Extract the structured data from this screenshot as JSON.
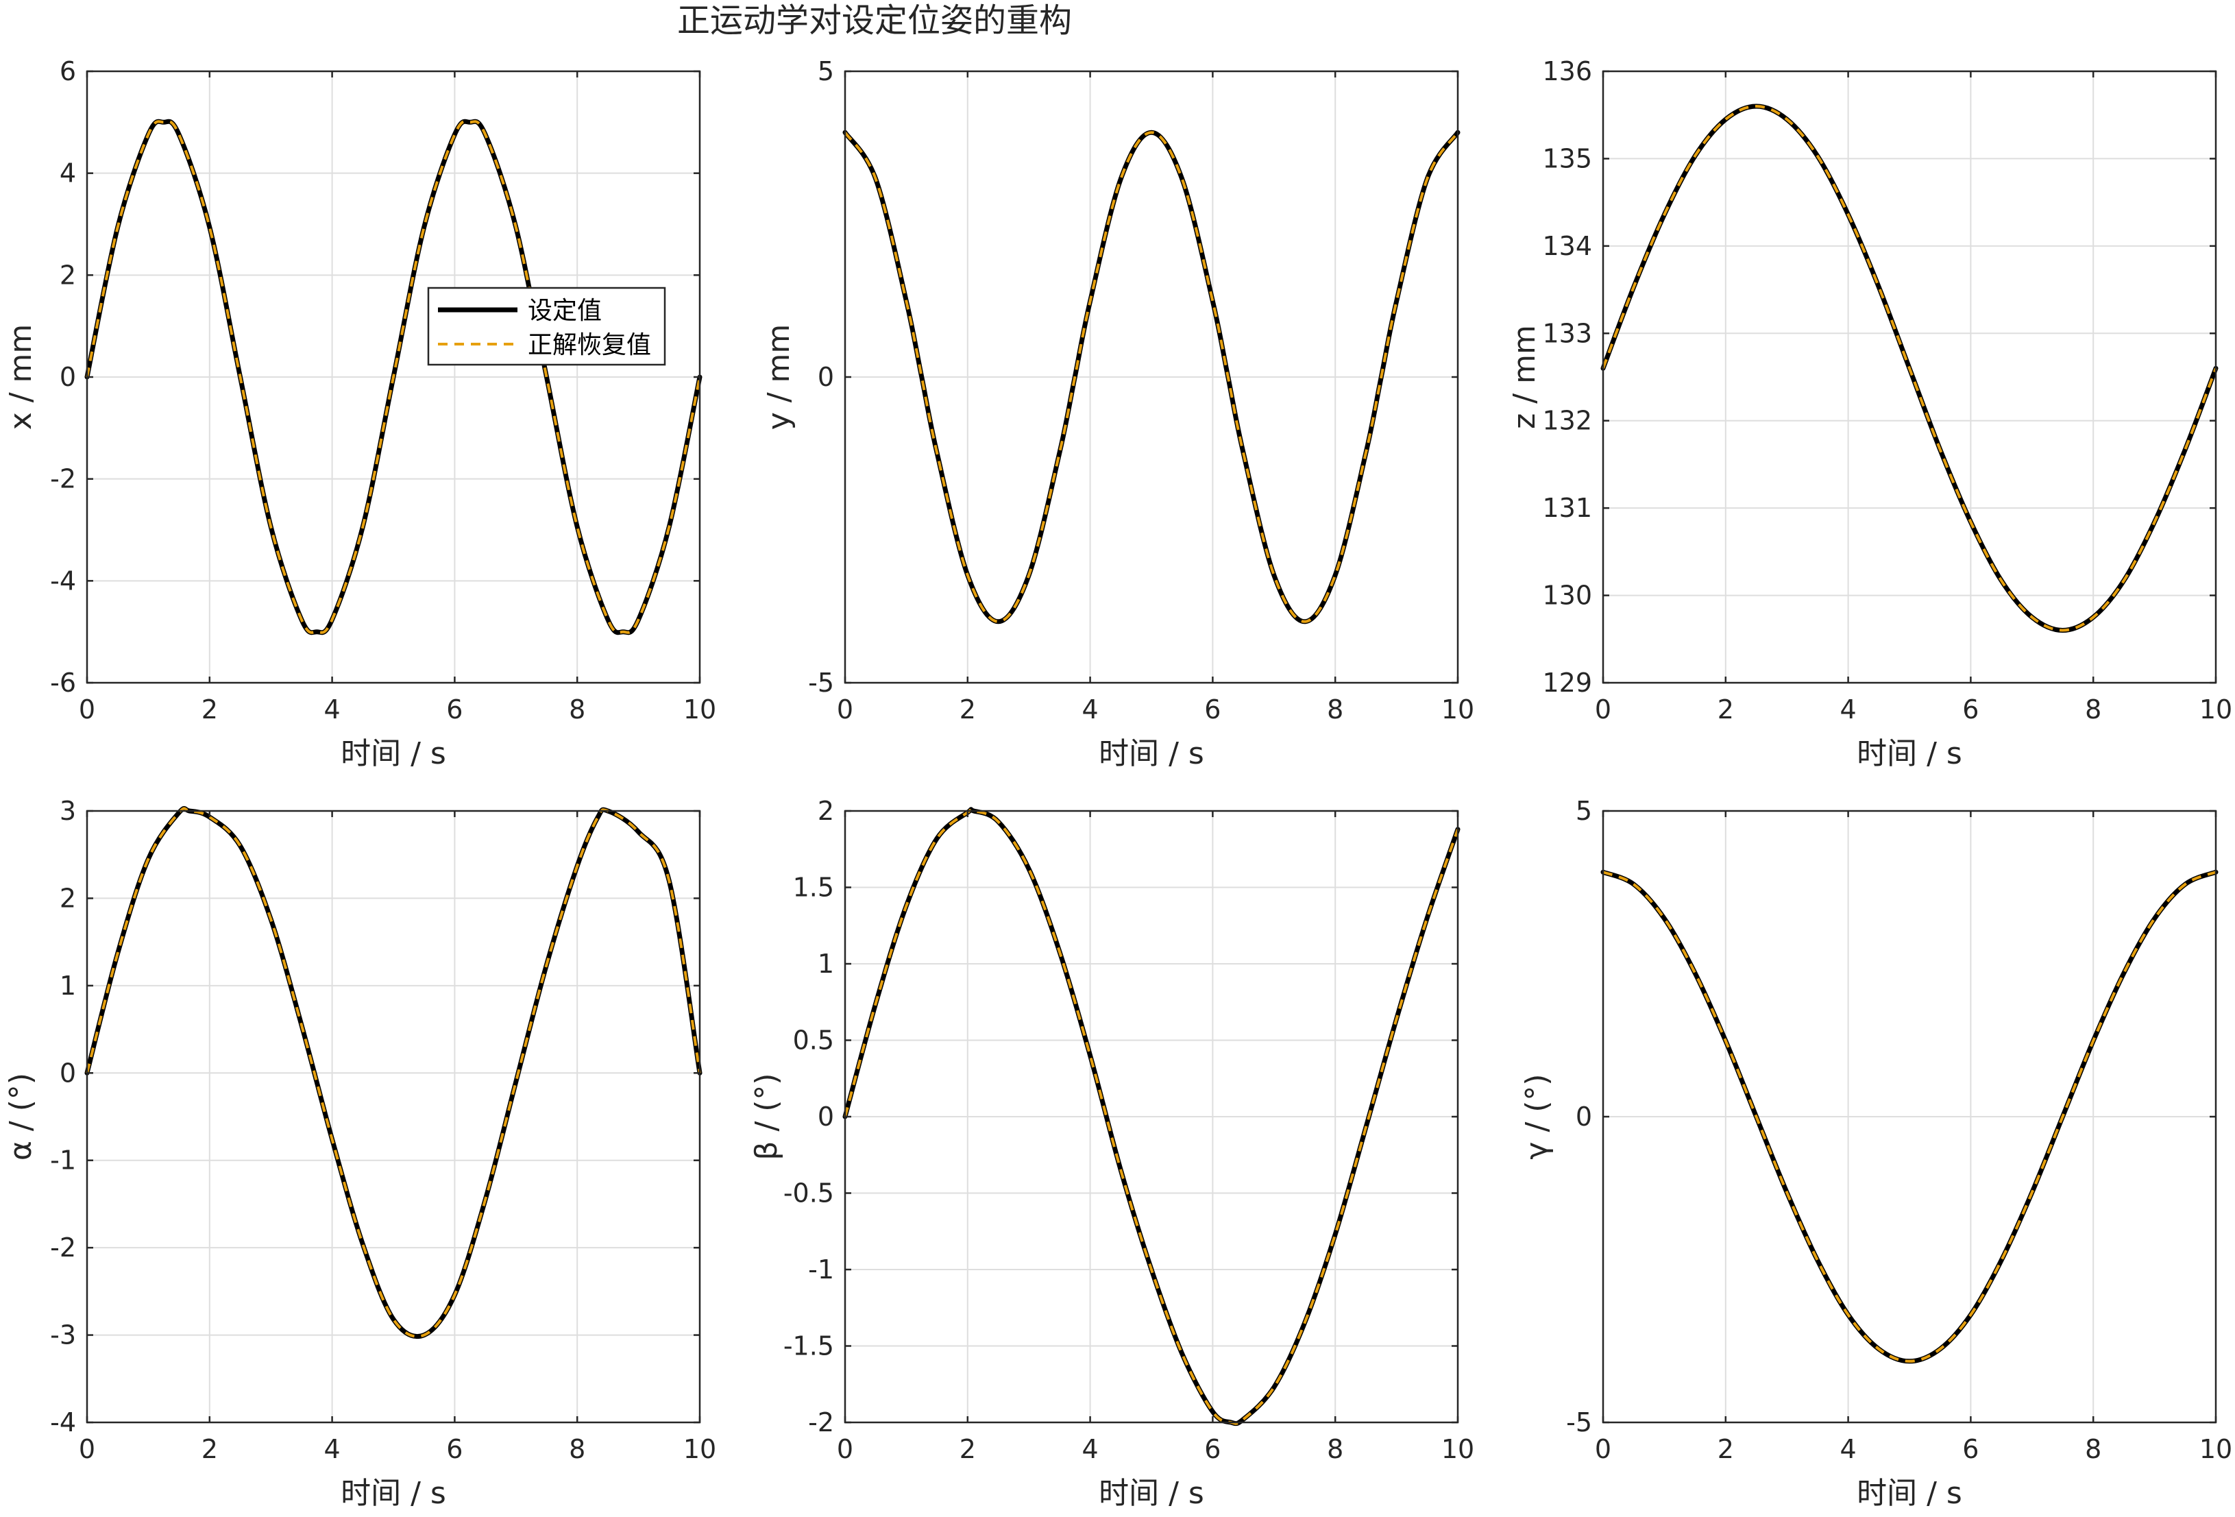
{
  "figure": {
    "title": "正运动学对设定位姿的重构",
    "colors": {
      "setpoint": "#000000",
      "recovered": "#e6a00f",
      "grid": "#dedede",
      "axis": "#262626"
    }
  },
  "legend": {
    "entries": [
      "设定值",
      "正解恢复值"
    ]
  },
  "chart_data": [
    {
      "type": "line",
      "xlabel": "时间 / s",
      "ylabel": "x / mm",
      "xlim": [
        0,
        10
      ],
      "ylim": [
        -6,
        6
      ],
      "xticks": [
        0,
        2,
        4,
        6,
        8,
        10
      ],
      "yticks": [
        -6,
        -4,
        -2,
        0,
        2,
        4,
        6
      ],
      "xtick_labels": [
        "0",
        "2",
        "4",
        "6",
        "8",
        "10"
      ],
      "ytick_labels": [
        "-6",
        "-4",
        "-2",
        "0",
        "2",
        "4",
        "6"
      ],
      "grid": true,
      "legend": "inside-upper-right",
      "x": [
        0,
        0.5,
        1,
        1.25,
        1.5,
        2,
        2.5,
        3,
        3.5,
        3.75,
        4,
        4.5,
        5,
        5.5,
        6,
        6.25,
        6.5,
        7,
        7.5,
        8,
        8.5,
        8.75,
        9,
        9.5,
        10
      ],
      "series": [
        {
          "name": "设定值",
          "values": [
            0,
            2.94,
            4.76,
            5.0,
            4.76,
            2.94,
            0,
            -2.94,
            -4.76,
            -5.0,
            -4.76,
            -2.94,
            0,
            2.94,
            4.76,
            5.0,
            4.76,
            2.94,
            0,
            -2.94,
            -4.76,
            -5.0,
            -4.76,
            -2.94,
            0
          ]
        },
        {
          "name": "正解恢复值",
          "values": [
            0,
            2.94,
            4.76,
            5.0,
            4.76,
            2.94,
            0,
            -2.94,
            -4.76,
            -5.0,
            -4.76,
            -2.94,
            0,
            2.94,
            4.76,
            5.0,
            4.76,
            2.94,
            0,
            -2.94,
            -4.76,
            -5.0,
            -4.76,
            -2.94,
            0
          ]
        }
      ]
    },
    {
      "type": "line",
      "xlabel": "时间 / s",
      "ylabel": "y / mm",
      "xlim": [
        0,
        10
      ],
      "ylim": [
        -5,
        5
      ],
      "xticks": [
        0,
        2,
        4,
        6,
        8,
        10
      ],
      "yticks": [
        -5,
        0,
        5
      ],
      "xtick_labels": [
        "0",
        "2",
        "4",
        "6",
        "8",
        "10"
      ],
      "ytick_labels": [
        "-5",
        "0",
        "5"
      ],
      "grid": true,
      "x": [
        0,
        0.5,
        1,
        1.25,
        1.5,
        2,
        2.5,
        3,
        3.5,
        3.75,
        4,
        4.5,
        5,
        5.5,
        6,
        6.25,
        6.5,
        7,
        7.5,
        8,
        8.5,
        8.75,
        9,
        9.5,
        10
      ],
      "series": [
        {
          "name": "设定值",
          "values": [
            4.0,
            3.24,
            1.24,
            0,
            -1.24,
            -3.24,
            -4.0,
            -3.24,
            -1.24,
            0,
            1.24,
            3.24,
            4.0,
            3.24,
            1.24,
            0,
            -1.24,
            -3.24,
            -4.0,
            -3.24,
            -1.24,
            0,
            1.24,
            3.24,
            4.0
          ]
        },
        {
          "name": "正解恢复值",
          "values": [
            4.0,
            3.24,
            1.24,
            0,
            -1.24,
            -3.24,
            -4.0,
            -3.24,
            -1.24,
            0,
            1.24,
            3.24,
            4.0,
            3.24,
            1.24,
            0,
            -1.24,
            -3.24,
            -4.0,
            -3.24,
            -1.24,
            0,
            1.24,
            3.24,
            4.0
          ]
        }
      ]
    },
    {
      "type": "line",
      "xlabel": "时间 / s",
      "ylabel": "z / mm",
      "xlim": [
        0,
        10
      ],
      "ylim": [
        129,
        136
      ],
      "xticks": [
        0,
        2,
        4,
        6,
        8,
        10
      ],
      "yticks": [
        129,
        130,
        131,
        132,
        133,
        134,
        135,
        136
      ],
      "xtick_labels": [
        "0",
        "2",
        "4",
        "6",
        "8",
        "10"
      ],
      "ytick_labels": [
        "129",
        "130",
        "131",
        "132",
        "133",
        "134",
        "135",
        "136"
      ],
      "grid": true,
      "x": [
        0,
        0.5,
        1,
        1.5,
        2,
        2.5,
        3,
        3.5,
        4,
        4.5,
        5,
        5.5,
        6,
        6.5,
        7,
        7.5,
        8,
        8.5,
        9,
        9.5,
        10
      ],
      "series": [
        {
          "name": "设定值",
          "values": [
            132.6,
            133.53,
            134.36,
            135.03,
            135.45,
            135.6,
            135.45,
            135.03,
            134.36,
            133.53,
            132.6,
            131.67,
            130.84,
            130.17,
            129.75,
            129.6,
            129.75,
            130.17,
            130.84,
            131.67,
            132.6
          ]
        },
        {
          "name": "正解恢复值",
          "values": [
            132.6,
            133.53,
            134.36,
            135.03,
            135.45,
            135.6,
            135.45,
            135.03,
            134.36,
            133.53,
            132.6,
            131.67,
            130.84,
            130.17,
            129.75,
            129.6,
            129.75,
            130.17,
            130.84,
            131.67,
            132.6
          ]
        }
      ]
    },
    {
      "type": "line",
      "xlabel": "时间 / s",
      "ylabel": "α / (°)",
      "xlim": [
        0,
        10
      ],
      "ylim": [
        -4,
        3
      ],
      "xticks": [
        0,
        2,
        4,
        6,
        8,
        10
      ],
      "yticks": [
        -4,
        -3,
        -2,
        -1,
        0,
        1,
        2,
        3
      ],
      "xtick_labels": [
        "0",
        "2",
        "4",
        "6",
        "8",
        "10"
      ],
      "ytick_labels": [
        "-4",
        "-3",
        "-2",
        "-1",
        "0",
        "1",
        "2",
        "3"
      ],
      "grid": true,
      "x": [
        0,
        0.5,
        1,
        1.5,
        1.67,
        2,
        2.5,
        3,
        3.5,
        4,
        4.5,
        5,
        5.5,
        6,
        6.5,
        7,
        7.5,
        8,
        8.33,
        8.5,
        9,
        9.5,
        10
      ],
      "series": [
        {
          "name": "设定值",
          "values": [
            0,
            1.37,
            2.45,
            2.98,
            3.0,
            2.93,
            2.6,
            1.76,
            0.55,
            -0.76,
            -1.96,
            -2.82,
            -3.0,
            -2.54,
            -1.45,
            -0.1,
            1.24,
            2.37,
            2.92,
            3.0,
            2.76,
            2.2,
            0.0
          ]
        },
        {
          "name": "正解恢复值",
          "values": [
            0,
            1.37,
            2.45,
            2.98,
            3.0,
            2.93,
            2.6,
            1.76,
            0.55,
            -0.76,
            -1.96,
            -2.82,
            -3.0,
            -2.54,
            -1.45,
            -0.1,
            1.24,
            2.37,
            2.92,
            3.0,
            2.76,
            2.2,
            0.0
          ]
        }
      ]
    },
    {
      "type": "line",
      "xlabel": "时间 / s",
      "ylabel": "β / (°)",
      "xlim": [
        0,
        10
      ],
      "ylim": [
        -2,
        2
      ],
      "xticks": [
        0,
        2,
        4,
        6,
        8,
        10
      ],
      "yticks": [
        -2,
        -1.5,
        -1,
        -0.5,
        0,
        0.5,
        1,
        1.5,
        2
      ],
      "xtick_labels": [
        "0",
        "2",
        "4",
        "6",
        "8",
        "10"
      ],
      "ytick_labels": [
        "-2",
        "-1.5",
        "-1",
        "-0.5",
        "0",
        "0.5",
        "1",
        "1.5",
        "2"
      ],
      "grid": true,
      "x": [
        0,
        0.5,
        1,
        1.5,
        2,
        2.1,
        2.5,
        3,
        3.5,
        4,
        4.5,
        5,
        5.5,
        6,
        6.3,
        6.5,
        7,
        7.5,
        8,
        8.5,
        9,
        9.5,
        10
      ],
      "series": [
        {
          "name": "设定值",
          "values": [
            0,
            0.74,
            1.38,
            1.82,
            1.99,
            2.0,
            1.93,
            1.62,
            1.08,
            0.4,
            -0.35,
            -1.0,
            -1.55,
            -1.93,
            -2.0,
            -1.98,
            -1.77,
            -1.35,
            -0.77,
            -0.07,
            0.64,
            1.3,
            1.88
          ]
        },
        {
          "name": "正解恢复值",
          "values": [
            0,
            0.74,
            1.38,
            1.82,
            1.99,
            2.0,
            1.93,
            1.62,
            1.08,
            0.4,
            -0.35,
            -1.0,
            -1.55,
            -1.93,
            -2.0,
            -1.98,
            -1.77,
            -1.35,
            -0.77,
            -0.07,
            0.64,
            1.3,
            1.88
          ]
        }
      ]
    },
    {
      "type": "line",
      "xlabel": "时间 / s",
      "ylabel": "γ / (°)",
      "xlim": [
        0,
        10
      ],
      "ylim": [
        -5,
        5
      ],
      "xticks": [
        0,
        2,
        4,
        6,
        8,
        10
      ],
      "yticks": [
        -5,
        0,
        5
      ],
      "xtick_labels": [
        "0",
        "2",
        "4",
        "6",
        "8",
        "10"
      ],
      "ytick_labels": [
        "-5",
        "0",
        "5"
      ],
      "grid": true,
      "x": [
        0,
        0.5,
        1,
        1.5,
        2,
        2.5,
        3,
        3.5,
        4,
        4.5,
        5,
        5.5,
        6,
        6.5,
        7,
        7.5,
        8,
        8.5,
        9,
        9.5,
        10
      ],
      "series": [
        {
          "name": "设定值",
          "values": [
            4.0,
            3.8,
            3.24,
            2.35,
            1.24,
            0,
            -1.24,
            -2.35,
            -3.24,
            -3.8,
            -4.0,
            -3.8,
            -3.24,
            -2.35,
            -1.24,
            0,
            1.24,
            2.35,
            3.24,
            3.8,
            4.0
          ]
        },
        {
          "name": "正解恢复值",
          "values": [
            4.0,
            3.8,
            3.24,
            2.35,
            1.24,
            0,
            -1.24,
            -2.35,
            -3.24,
            -3.8,
            -4.0,
            -3.8,
            -3.24,
            -2.35,
            -1.24,
            0,
            1.24,
            2.35,
            3.24,
            3.8,
            4.0
          ]
        }
      ]
    }
  ]
}
